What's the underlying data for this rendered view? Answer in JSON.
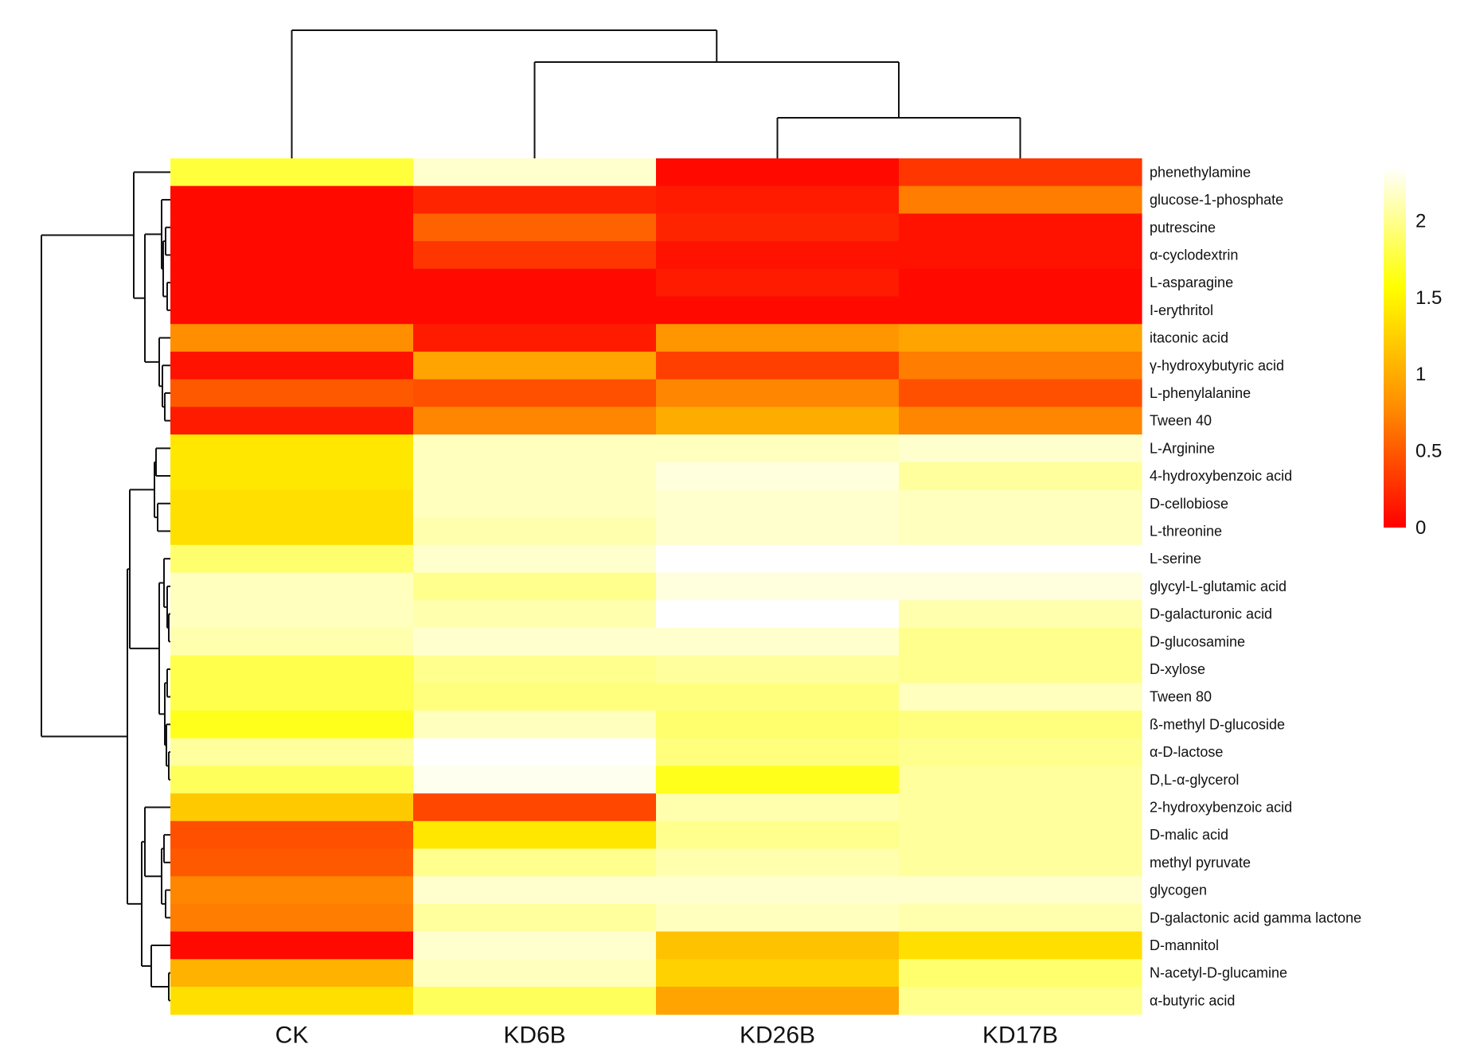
{
  "chart_data": {
    "type": "heatmap",
    "columns": [
      "CK",
      "KD6B",
      "KD26B",
      "KD17B"
    ],
    "rows": [
      "phenethylamine",
      "glucose-1-phosphate",
      "putrescine",
      "α-cyclodextrin",
      "L-asparagine",
      "I-erythritol",
      "itaconic acid",
      "γ-hydroxybutyric acid",
      "L-phenylalanine",
      "Tween 40",
      "L-Arginine",
      "4-hydroxybenzoic acid",
      "D-cellobiose",
      "L-threonine",
      "L-serine",
      "glycyl-L-glutamic acid",
      "D-galacturonic acid",
      "D-glucosamine",
      "D-xylose",
      "Tween 80",
      "ß-methyl D-glucoside",
      "α-D-lactose",
      "D,L-α-glycerol",
      "2-hydroxybenzoic acid",
      "D-malic acid",
      "methyl pyruvate",
      "glycogen",
      "D-galactonic acid gamma lactone",
      "D-mannitol",
      "N-acetyl-D-glucamine",
      "α-butyric acid"
    ],
    "values": [
      [
        1.75,
        2.2,
        0.05,
        0.3
      ],
      [
        0.05,
        0.2,
        0.15,
        0.7
      ],
      [
        0.05,
        0.55,
        0.2,
        0.1
      ],
      [
        0.05,
        0.3,
        0.1,
        0.1
      ],
      [
        0.05,
        0.05,
        0.15,
        0.05
      ],
      [
        0.05,
        0.05,
        0.05,
        0.05
      ],
      [
        0.8,
        0.15,
        0.85,
        0.95
      ],
      [
        0.1,
        0.95,
        0.35,
        0.7
      ],
      [
        0.5,
        0.45,
        0.75,
        0.45
      ],
      [
        0.15,
        0.75,
        1.0,
        0.75
      ],
      [
        1.4,
        2.15,
        2.15,
        2.2
      ],
      [
        1.4,
        2.15,
        2.25,
        2.05
      ],
      [
        1.35,
        2.15,
        2.2,
        2.15
      ],
      [
        1.35,
        2.1,
        2.2,
        2.15
      ],
      [
        1.9,
        2.2,
        2.35,
        2.35
      ],
      [
        2.15,
        2.0,
        2.25,
        2.25
      ],
      [
        2.15,
        2.1,
        2.35,
        2.1
      ],
      [
        2.1,
        2.2,
        2.2,
        2.0
      ],
      [
        1.8,
        2.0,
        2.05,
        2.0
      ],
      [
        1.8,
        1.95,
        1.95,
        2.15
      ],
      [
        1.65,
        2.15,
        1.9,
        1.95
      ],
      [
        2.05,
        2.35,
        1.95,
        2.0
      ],
      [
        1.85,
        2.3,
        1.65,
        2.05
      ],
      [
        1.2,
        0.4,
        2.1,
        2.05
      ],
      [
        0.45,
        1.4,
        2.0,
        2.05
      ],
      [
        0.5,
        2.0,
        2.1,
        2.05
      ],
      [
        0.75,
        2.2,
        2.2,
        2.2
      ],
      [
        0.7,
        2.05,
        2.15,
        2.1
      ],
      [
        0.05,
        2.2,
        1.15,
        1.35
      ],
      [
        1.05,
        2.15,
        1.25,
        1.9
      ],
      [
        1.35,
        1.85,
        0.95,
        2.0
      ]
    ],
    "colorbar": {
      "ticks": [
        0,
        0.5,
        1,
        1.5,
        2
      ],
      "tick_labels": [
        "0",
        "0.5",
        "1",
        "1.5",
        "2"
      ],
      "range": [
        0,
        2.35
      ],
      "colormap": [
        "#ff0000",
        "#ff8c00",
        "#ffff00",
        "#ffffff"
      ]
    },
    "row_dendrogram": true,
    "column_dendrogram": true,
    "title": "",
    "xlabel": "",
    "ylabel": ""
  }
}
